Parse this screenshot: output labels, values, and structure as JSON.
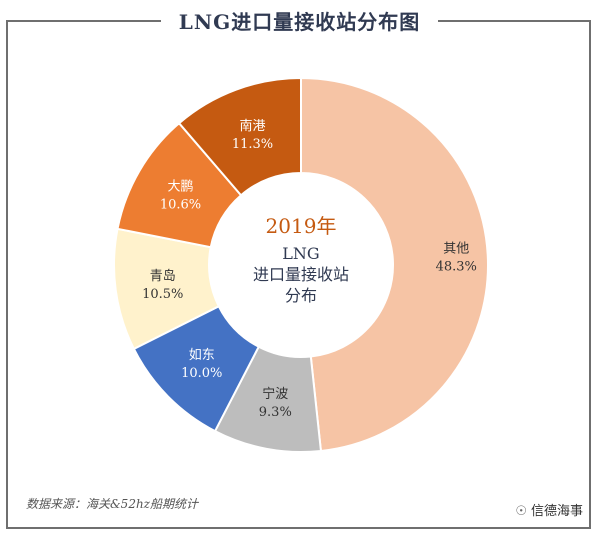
{
  "title": "LNG进口量接收站分布图",
  "center": {
    "year": "2019年",
    "line1": "LNG",
    "line2": "进口量接收站",
    "line3": "分布"
  },
  "source": "数据来源：海关&52hz船期统计",
  "brand": {
    "icon": "wechat-icon",
    "text": "信德海事"
  },
  "colors": {
    "other": "#f6c4a5",
    "ningbo": "#bdbdbd",
    "rudong": "#4472c4",
    "qingdao": "#fff2cc",
    "dapeng": "#ed7d31",
    "nangang": "#c55a11",
    "year": "#c55a11",
    "title": "#303a52"
  },
  "chart_data": {
    "type": "pie",
    "donut": true,
    "title": "LNG进口量接收站分布图",
    "unit": "%",
    "slices": [
      {
        "label": "其他",
        "value": 48.3,
        "value_label": "48.3%"
      },
      {
        "label": "宁波",
        "value": 9.3,
        "value_label": "9.3%"
      },
      {
        "label": "如东",
        "value": 10.0,
        "value_label": "10.0%"
      },
      {
        "label": "青岛",
        "value": 10.5,
        "value_label": "10.5%"
      },
      {
        "label": "大鹏",
        "value": 10.6,
        "value_label": "10.6%"
      },
      {
        "label": "南港",
        "value": 11.3,
        "value_label": "11.3%"
      }
    ]
  }
}
